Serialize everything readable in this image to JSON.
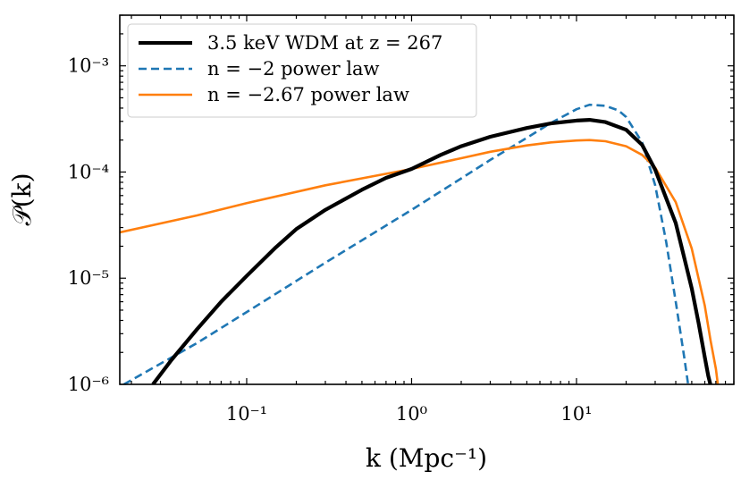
{
  "chart_data": {
    "type": "line",
    "xscale": "log",
    "yscale": "log",
    "xlim": [
      0.017,
      90
    ],
    "ylim": [
      1e-06,
      0.003
    ],
    "xlabel": "k (Mpc⁻¹)",
    "ylabel": "𝒫(k)",
    "xticks": [
      {
        "value": 0.1,
        "label": "10⁻¹"
      },
      {
        "value": 1,
        "label": "10⁰"
      },
      {
        "value": 10,
        "label": "10¹"
      }
    ],
    "yticks": [
      {
        "value": 1e-06,
        "label": "10⁻⁶"
      },
      {
        "value": 1e-05,
        "label": "10⁻⁵"
      },
      {
        "value": 0.0001,
        "label": "10⁻⁴"
      },
      {
        "value": 0.001,
        "label": "10⁻³"
      }
    ],
    "legend_position": "top-left",
    "series": [
      {
        "name": "3.5 keV WDM at z = 267",
        "color": "#000000",
        "style": "solid",
        "x": [
          0.027,
          0.035,
          0.05,
          0.07,
          0.1,
          0.15,
          0.2,
          0.3,
          0.5,
          0.7,
          1,
          1.5,
          2,
          3,
          5,
          7,
          10,
          12,
          15,
          20,
          25,
          30,
          40,
          50,
          55,
          60,
          63,
          66
        ],
        "y": [
          1e-06,
          1.7e-06,
          3.3e-06,
          6e-06,
          1.05e-05,
          1.95e-05,
          2.9e-05,
          4.4e-05,
          6.8e-05,
          8.8e-05,
          0.000107,
          0.000145,
          0.000175,
          0.000215,
          0.00026,
          0.000287,
          0.000305,
          0.00031,
          0.000295,
          0.00025,
          0.00018,
          0.000105,
          3.3e-05,
          8e-06,
          3.8e-06,
          1.8e-06,
          1.2e-06,
          9e-07
        ]
      },
      {
        "name": "n = −2 power law",
        "color": "#1f77b4",
        "style": "dashed",
        "x": [
          0.018,
          0.05,
          0.1,
          0.3,
          1,
          2,
          3,
          5,
          7,
          10,
          12,
          15,
          18,
          20,
          25,
          30,
          35,
          40,
          45,
          48
        ],
        "y": [
          1e-06,
          2.45e-06,
          4.8e-06,
          1.4e-05,
          4.4e-05,
          8.7e-05,
          0.00013,
          0.00021,
          0.00029,
          0.00039,
          0.00043,
          0.00042,
          0.00038,
          0.00033,
          0.00019,
          7.5e-05,
          2.2e-05,
          6e-06,
          1.8e-06,
          9e-07
        ]
      },
      {
        "name": "n = −2.67 power law",
        "color": "#ff7f0e",
        "style": "solid",
        "x": [
          0.017,
          0.05,
          0.1,
          0.3,
          1,
          2,
          3,
          5,
          7,
          10,
          12,
          15,
          20,
          25,
          30,
          40,
          50,
          60,
          65,
          70,
          72
        ],
        "y": [
          2.7e-05,
          3.9e-05,
          5.1e-05,
          7.5e-05,
          0.000107,
          0.000135,
          0.000155,
          0.000178,
          0.00019,
          0.000198,
          0.0002,
          0.000195,
          0.000175,
          0.000145,
          0.00011,
          5.2e-05,
          1.9e-05,
          5.5e-06,
          2.6e-06,
          1.4e-06,
          1e-06
        ]
      }
    ]
  }
}
